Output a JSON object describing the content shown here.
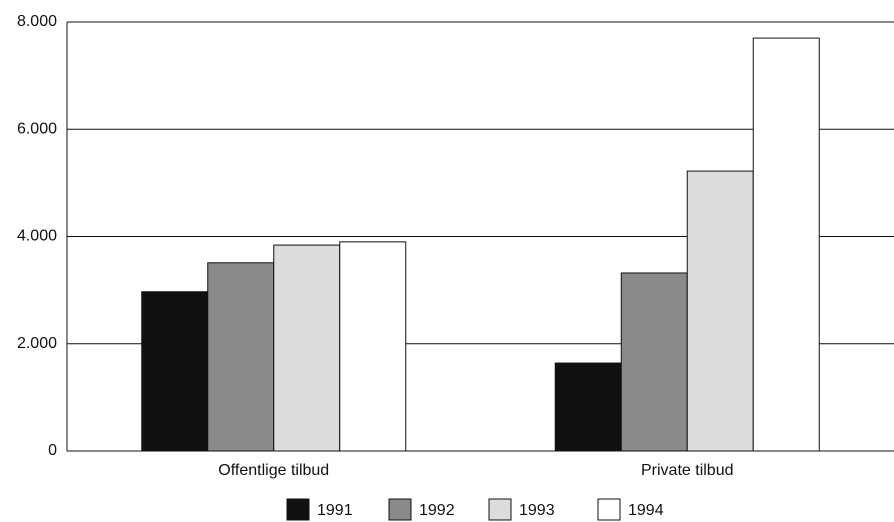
{
  "chart_data": {
    "type": "bar",
    "categories": [
      "Offentlige tilbud",
      "Private tilbud"
    ],
    "series": [
      {
        "name": "1991",
        "color": "#111111",
        "values": [
          2970,
          1640
        ]
      },
      {
        "name": "1992",
        "color": "#8a8a8a",
        "values": [
          3510,
          3320
        ]
      },
      {
        "name": "1993",
        "color": "#dcdcdc",
        "values": [
          3840,
          5220
        ]
      },
      {
        "name": "1994",
        "color": "#ffffff",
        "values": [
          3900,
          7700
        ]
      }
    ],
    "ylim": [
      0,
      8000
    ],
    "yticks": [
      0,
      {
        "value": 2000,
        "label": "2.000"
      },
      {
        "value": 4000,
        "label": "4.000"
      },
      {
        "value": 6000,
        "label": "6.000"
      },
      {
        "value": 8000,
        "label": "8.000"
      }
    ],
    "grid": true,
    "legend": "bottom"
  }
}
